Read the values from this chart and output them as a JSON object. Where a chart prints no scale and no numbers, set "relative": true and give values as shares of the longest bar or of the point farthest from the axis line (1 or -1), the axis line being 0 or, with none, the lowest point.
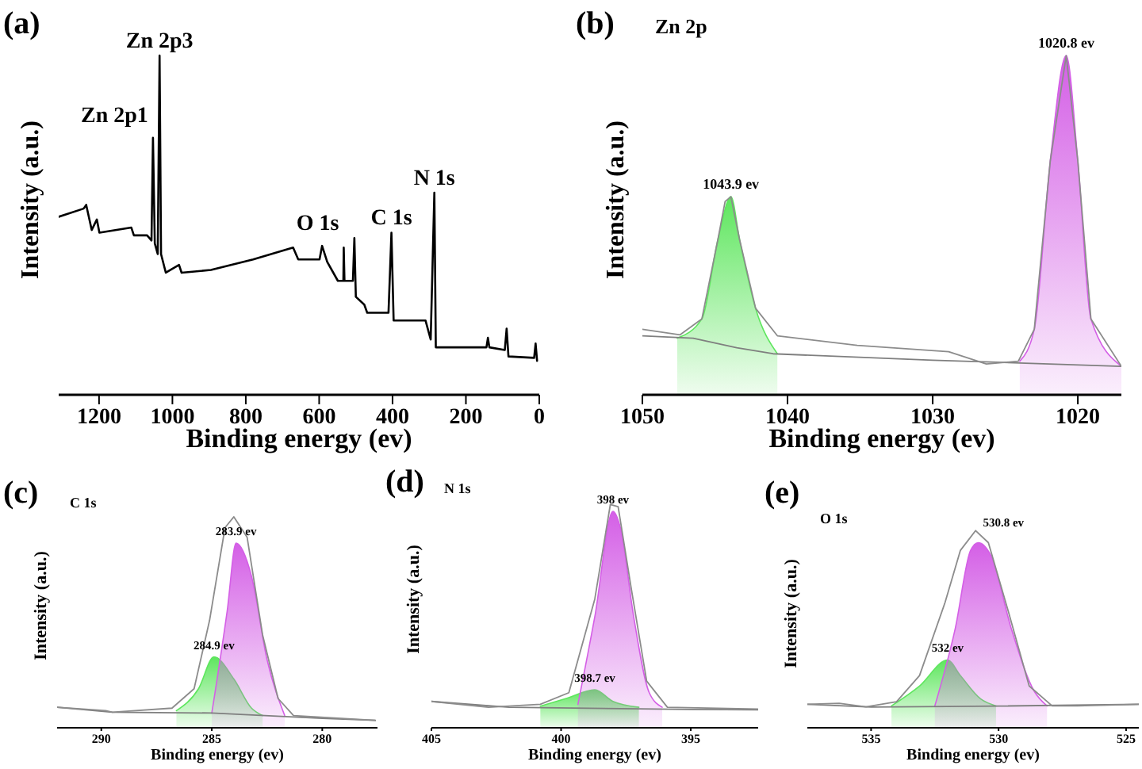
{
  "chart_data": [
    {
      "type": "line",
      "title": "(a)",
      "xlabel": "Binding energy (ev)",
      "ylabel": "Intensity (a.u.)",
      "relative": true,
      "marker": "none",
      "xlim": [
        1310,
        0
      ],
      "xticks": [
        1200,
        1000,
        800,
        600,
        400,
        200,
        0
      ],
      "annotations": [
        {
          "text": "Zn 2p1",
          "x": 1053,
          "y": 0.758
        },
        {
          "text": "Zn 2p3",
          "x": 1035,
          "y": 1.0
        },
        {
          "text": "O 1s",
          "x": 533,
          "y": 0.434
        },
        {
          "text": "C 1s",
          "x": 403,
          "y": 0.478
        },
        {
          "text": "N 1s",
          "x": 286,
          "y": 0.596
        }
      ],
      "series": [
        {
          "type": "line",
          "color": "#000000",
          "x": [
            1310,
            1242,
            1235,
            1220,
            1206,
            1199,
            1112,
            1105,
            1069,
            1057,
            1053,
            1048,
            1040,
            1035,
            1031,
            1018,
            982,
            975,
            895,
            780,
            671,
            657,
            599,
            592,
            578,
            549,
            534,
            533,
            531,
            508,
            504,
            500,
            477,
            469,
            411,
            403,
            397,
            310,
            296,
            286,
            282,
            144,
            140,
            136,
            94,
            89,
            84,
            14,
            10,
            6
          ],
          "values": [
            0.525,
            0.549,
            0.56,
            0.486,
            0.517,
            0.478,
            0.493,
            0.47,
            0.47,
            0.455,
            0.758,
            0.446,
            0.415,
            1.0,
            0.415,
            0.36,
            0.383,
            0.36,
            0.368,
            0.399,
            0.434,
            0.399,
            0.399,
            0.439,
            0.392,
            0.336,
            0.336,
            0.434,
            0.336,
            0.336,
            0.462,
            0.289,
            0.266,
            0.242,
            0.242,
            0.478,
            0.219,
            0.219,
            0.163,
            0.596,
            0.14,
            0.14,
            0.168,
            0.14,
            0.132,
            0.195,
            0.113,
            0.109,
            0.151,
            0.1
          ]
        }
      ]
    },
    {
      "type": "line",
      "title": "(b)",
      "xlabel": "Binding energy (ev)",
      "ylabel": "Intensity (a.u.)",
      "relative": true,
      "marker": "none",
      "xlim": [
        1050,
        1017
      ],
      "xticks": [
        1050,
        1040,
        1030,
        1020
      ],
      "annotations": [
        "Zn 2p",
        {
          "text": "1043.9 ev",
          "x": 1043.9,
          "y": 0.584
        },
        {
          "text": "1020.8 ev",
          "x": 1020.8,
          "y": 1.0
        }
      ],
      "series": [
        {
          "type": "area",
          "color": "#5ee65e",
          "x": [
            1047.6,
            1045.9,
            1044.8,
            1043.9,
            1043.3,
            1042.2,
            1040.7
          ],
          "values": [
            0.167,
            0.224,
            0.457,
            0.584,
            0.457,
            0.255,
            0.121
          ]
        },
        {
          "type": "area",
          "color": "#d45fe6",
          "x": [
            1024,
            1023,
            1021.9,
            1020.8,
            1020,
            1019.1,
            1017
          ],
          "values": [
            0.099,
            0.193,
            0.689,
            1.0,
            0.689,
            0.224,
            0.084
          ]
        },
        {
          "type": "line",
          "color": "#7f7f7f",
          "x": [
            1050,
            1046.5,
            1043.5,
            1041,
            1030,
            1017
          ],
          "values": [
            0.174,
            0.167,
            0.139,
            0.121,
            0.102,
            0.084
          ]
        },
        {
          "type": "line",
          "color": "#8c8c8c",
          "x": [
            1050,
            1047.4,
            1045.9,
            1044.8,
            1044.3,
            1043.9,
            1043.3,
            1042.2,
            1040.7,
            1035.2,
            1028.9,
            1026.3,
            1024.1,
            1023,
            1021.9,
            1020.8,
            1020,
            1019.1,
            1017
          ],
          "values": [
            0.193,
            0.177,
            0.224,
            0.457,
            0.57,
            0.584,
            0.457,
            0.255,
            0.174,
            0.146,
            0.127,
            0.091,
            0.099,
            0.193,
            0.689,
            1.0,
            0.689,
            0.224,
            0.084
          ]
        }
      ]
    },
    {
      "type": "line",
      "title": "(c)",
      "xlabel": "Binding energy (ev)",
      "ylabel": "Intensity (a.u.)",
      "relative": true,
      "marker": "none",
      "xlim": [
        292,
        277.5
      ],
      "xticks": [
        290,
        285,
        280
      ],
      "annotations": [
        "C 1s",
        {
          "text": "284.9 ev",
          "x": 284.9,
          "y": 0.336
        },
        {
          "text": "283.9 ev",
          "x": 283.9,
          "y": 0.875
        }
      ],
      "series": [
        {
          "type": "area",
          "color": "#5ee65e",
          "x": [
            286.6,
            285.6,
            284.9,
            284.0,
            283.2,
            282.7
          ],
          "values": [
            0.081,
            0.185,
            0.336,
            0.231,
            0.093,
            0.058
          ]
        },
        {
          "type": "area",
          "color": "#d45fe6",
          "x": [
            285.0,
            284.3,
            283.9,
            283.2,
            282.5,
            281.7
          ],
          "values": [
            0.069,
            0.556,
            0.875,
            0.718,
            0.324,
            0.058
          ]
        },
        {
          "type": "line",
          "color": "#7f7f7f",
          "x": [
            292,
            289.5,
            285,
            280,
            277.6
          ],
          "values": [
            0.097,
            0.074,
            0.07,
            0.045,
            0.035
          ]
        },
        {
          "type": "line",
          "color": "#8c8c8c",
          "x": [
            292,
            289.8,
            289.5,
            286.8,
            285.8,
            285.1,
            284.4,
            284.0,
            283.4,
            282.7,
            282.0,
            281.3,
            277.6
          ],
          "values": [
            0.097,
            0.081,
            0.074,
            0.093,
            0.185,
            0.509,
            0.949,
            1.0,
            0.903,
            0.44,
            0.139,
            0.058,
            0.035
          ]
        }
      ]
    },
    {
      "type": "line",
      "title": "(d)",
      "xlabel": "Binding energy (ev)",
      "ylabel": "Intensity (a.u.)",
      "relative": true,
      "marker": "none",
      "xlim": [
        405,
        392.4
      ],
      "xticks": [
        405,
        400,
        395
      ],
      "annotations": [
        "N 1s",
        {
          "text": "398.7 ev",
          "x": 398.7,
          "y": 0.17
        },
        {
          "text": "398 ev",
          "x": 398.0,
          "y": 0.969
        }
      ],
      "series": [
        {
          "type": "area",
          "color": "#5ee65e",
          "x": [
            400.8,
            399.8,
            398.7,
            398.0,
            397.0
          ],
          "values": [
            0.097,
            0.131,
            0.17,
            0.118,
            0.092
          ]
        },
        {
          "type": "area",
          "color": "#d45fe6",
          "x": [
            399.35,
            398.7,
            398.0,
            397.7,
            397.2,
            396.6,
            396.1
          ],
          "values": [
            0.105,
            0.497,
            0.969,
            0.89,
            0.497,
            0.157,
            0.092
          ]
        },
        {
          "type": "line",
          "color": "#7f7f7f",
          "x": [
            405,
            402,
            395,
            392.4
          ],
          "values": [
            0.118,
            0.092,
            0.082,
            0.08
          ]
        },
        {
          "type": "line",
          "color": "#8c8c8c",
          "x": [
            405,
            402.8,
            400.8,
            399.7,
            398.7,
            398.1,
            397.8,
            397.3,
            396.7,
            395.9,
            392.4
          ],
          "values": [
            0.118,
            0.092,
            0.105,
            0.157,
            0.576,
            1.0,
            0.99,
            0.628,
            0.209,
            0.092,
            0.084
          ]
        }
      ]
    },
    {
      "type": "line",
      "title": "(e)",
      "xlabel": "Binding energy (ev)",
      "ylabel": "Intensity (a.u.)",
      "relative": true,
      "marker": "none",
      "xlim": [
        537.5,
        524.5
      ],
      "xticks": [
        535,
        530,
        525
      ],
      "annotations": [
        "O 1s",
        {
          "text": "532 ev",
          "x": 532.0,
          "y": 0.344
        },
        {
          "text": "530.8 ev",
          "x": 530.8,
          "y": 0.939
        }
      ],
      "series": [
        {
          "type": "area",
          "color": "#5ee65e",
          "x": [
            534.2,
            533.1,
            532.0,
            531.5,
            530.7,
            530.1
          ],
          "values": [
            0.111,
            0.212,
            0.344,
            0.265,
            0.146,
            0.111
          ]
        },
        {
          "type": "area",
          "color": "#d45fe6",
          "x": [
            532.5,
            531.7,
            531.1,
            530.8,
            530.3,
            529.5,
            528.6,
            528.1
          ],
          "values": [
            0.111,
            0.503,
            0.899,
            0.939,
            0.873,
            0.503,
            0.185,
            0.111
          ]
        },
        {
          "type": "line",
          "color": "#7f7f7f",
          "x": [
            537.5,
            535,
            530,
            524.5
          ],
          "values": [
            0.119,
            0.105,
            0.11,
            0.119
          ]
        },
        {
          "type": "line",
          "color": "#8c8c8c",
          "x": [
            537.5,
            536.25,
            535.2,
            534.0,
            533.1,
            532.1,
            531.5,
            530.9,
            530.4,
            529.6,
            528.8,
            527.9,
            526.9,
            524.5
          ],
          "values": [
            0.119,
            0.124,
            0.106,
            0.132,
            0.265,
            0.635,
            0.899,
            1.0,
            0.939,
            0.582,
            0.212,
            0.111,
            0.111,
            0.119
          ]
        }
      ]
    }
  ]
}
